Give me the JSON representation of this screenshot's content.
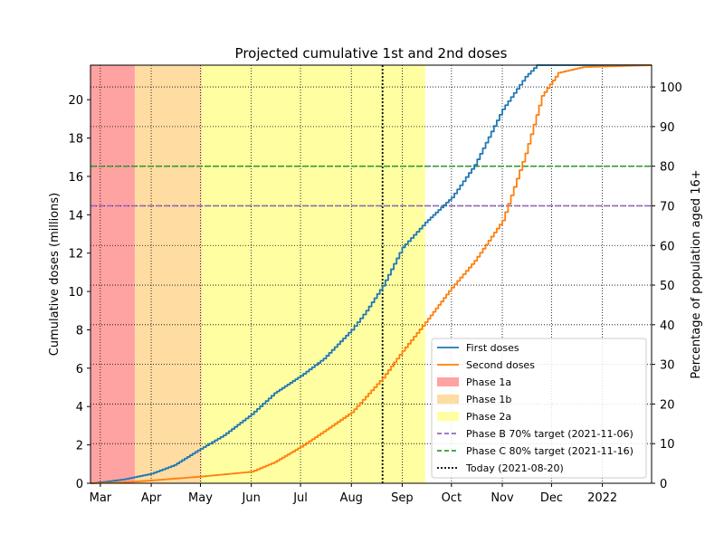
{
  "chart_data": {
    "type": "line",
    "title": "Projected cumulative 1st and 2nd doses",
    "ylabel": "Cumulative doses (millions)",
    "ylabel_right": "Percentage of population aged 16+",
    "ylim": [
      0,
      21.8
    ],
    "ylim_right": [
      0,
      105.5
    ],
    "xlim": [
      "2021-02-23",
      "2022-01-31"
    ],
    "x_ticks": [
      {
        "date": "2021-03-01",
        "label": "Mar"
      },
      {
        "date": "2021-04-01",
        "label": "Apr"
      },
      {
        "date": "2021-05-01",
        "label": "May"
      },
      {
        "date": "2021-06-01",
        "label": "Jun"
      },
      {
        "date": "2021-07-01",
        "label": "Jul"
      },
      {
        "date": "2021-08-01",
        "label": "Aug"
      },
      {
        "date": "2021-09-01",
        "label": "Sep"
      },
      {
        "date": "2021-10-01",
        "label": "Oct"
      },
      {
        "date": "2021-11-01",
        "label": "Nov"
      },
      {
        "date": "2021-12-01",
        "label": "Dec"
      },
      {
        "date": "2022-01-01",
        "label": "2022"
      }
    ],
    "y_ticks": [
      0,
      2,
      4,
      6,
      8,
      10,
      12,
      14,
      16,
      18,
      20
    ],
    "y_ticks_right": [
      0,
      10,
      20,
      30,
      40,
      50,
      60,
      70,
      80,
      90,
      100
    ],
    "grid": true,
    "legend_position": "lower-right",
    "phases": [
      {
        "name": "Phase 1a",
        "start": "2021-02-23",
        "end": "2021-03-22",
        "color": "#ffa2a2"
      },
      {
        "name": "Phase 1b",
        "start": "2021-03-22",
        "end": "2021-05-02",
        "color": "#ffdca2"
      },
      {
        "name": "Phase 2a",
        "start": "2021-05-02",
        "end": "2021-09-15",
        "color": "#ffffa2"
      }
    ],
    "series": [
      {
        "name": "First doses",
        "color": "#1f77b4",
        "points": [
          [
            "2021-02-23",
            0.0
          ],
          [
            "2021-03-01",
            0.05
          ],
          [
            "2021-03-15",
            0.2
          ],
          [
            "2021-04-01",
            0.5
          ],
          [
            "2021-04-15",
            0.95
          ],
          [
            "2021-05-01",
            1.8
          ],
          [
            "2021-05-15",
            2.5
          ],
          [
            "2021-06-01",
            3.6
          ],
          [
            "2021-06-15",
            4.7
          ],
          [
            "2021-07-01",
            5.6
          ],
          [
            "2021-07-15",
            6.5
          ],
          [
            "2021-08-01",
            8.0
          ],
          [
            "2021-08-10",
            9.0
          ],
          [
            "2021-08-20",
            10.3
          ],
          [
            "2021-09-01",
            12.3
          ],
          [
            "2021-09-15",
            13.6
          ],
          [
            "2021-10-01",
            14.9
          ],
          [
            "2021-10-15",
            16.6
          ],
          [
            "2021-11-01",
            19.5
          ],
          [
            "2021-11-15",
            21.2
          ],
          [
            "2021-11-22",
            21.8
          ],
          [
            "2022-01-31",
            21.8
          ]
        ]
      },
      {
        "name": "Second doses",
        "color": "#ff7f0e",
        "points": [
          [
            "2021-02-23",
            0.0
          ],
          [
            "2021-03-15",
            0.05
          ],
          [
            "2021-04-01",
            0.15
          ],
          [
            "2021-05-01",
            0.35
          ],
          [
            "2021-06-01",
            0.6
          ],
          [
            "2021-06-15",
            1.1
          ],
          [
            "2021-07-01",
            1.9
          ],
          [
            "2021-07-15",
            2.7
          ],
          [
            "2021-08-01",
            3.7
          ],
          [
            "2021-08-20",
            5.5
          ],
          [
            "2021-09-01",
            6.9
          ],
          [
            "2021-09-15",
            8.4
          ],
          [
            "2021-10-01",
            10.2
          ],
          [
            "2021-10-15",
            11.6
          ],
          [
            "2021-11-01",
            13.7
          ],
          [
            "2021-11-15",
            17.2
          ],
          [
            "2021-11-25",
            20.2
          ],
          [
            "2021-12-05",
            21.4
          ],
          [
            "2021-12-20",
            21.7
          ],
          [
            "2022-01-31",
            21.8
          ]
        ]
      }
    ],
    "reference_lines": [
      {
        "name": "Phase B 70% target (2021-11-06)",
        "axis": "y_right",
        "value": 70,
        "color": "#9467bd",
        "style": "dashed"
      },
      {
        "name": "Phase C 80% target (2021-11-16)",
        "axis": "y_right",
        "value": 80,
        "color": "#2ca02c",
        "style": "dashed"
      },
      {
        "name": "Today (2021-08-20)",
        "axis": "x",
        "value": "2021-08-20",
        "color": "#000000",
        "style": "dotted"
      }
    ]
  }
}
